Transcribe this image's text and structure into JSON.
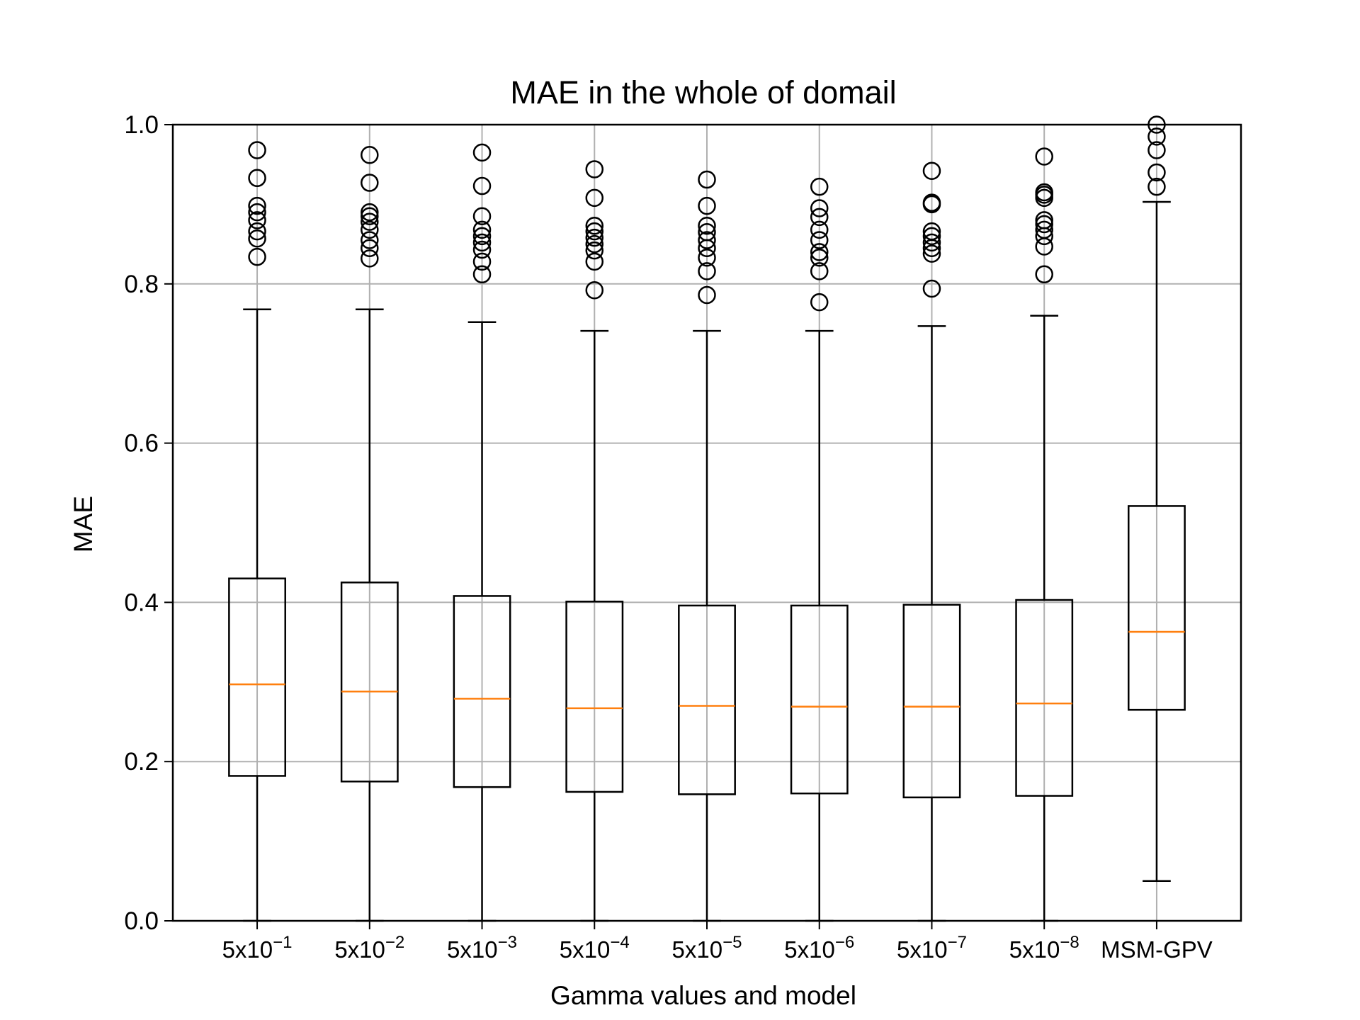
{
  "chart_data": {
    "type": "box",
    "title": "MAE in the whole of domail",
    "xlabel": "Gamma values and model",
    "ylabel": "MAE",
    "ylim": [
      0,
      1.0
    ],
    "yticks": [
      "0.0",
      "0.2",
      "0.4",
      "0.6",
      "0.8",
      "1.0"
    ],
    "grid": true,
    "colors": {
      "box": "#000000",
      "median": "#ff7f0e",
      "grid": "#b0b0b0"
    },
    "categories": [
      {
        "base": "5x10",
        "exp": "−1"
      },
      {
        "base": "5x10",
        "exp": "−2"
      },
      {
        "base": "5x10",
        "exp": "−3"
      },
      {
        "base": "5x10",
        "exp": "−4"
      },
      {
        "base": "5x10",
        "exp": "−5"
      },
      {
        "base": "5x10",
        "exp": "−6"
      },
      {
        "base": "5x10",
        "exp": "−7"
      },
      {
        "base": "5x10",
        "exp": "−8"
      },
      {
        "base": "MSM-GPV",
        "exp": ""
      }
    ],
    "boxes": [
      {
        "whislo": 0.0,
        "q1": 0.182,
        "med": 0.297,
        "q3": 0.43,
        "whishi": 0.768,
        "fliers": [
          0.834,
          0.857,
          0.866,
          0.88,
          0.89,
          0.898,
          0.933,
          0.968
        ]
      },
      {
        "whislo": 0.0,
        "q1": 0.175,
        "med": 0.288,
        "q3": 0.425,
        "whishi": 0.768,
        "fliers": [
          0.832,
          0.845,
          0.855,
          0.868,
          0.878,
          0.885,
          0.89,
          0.927,
          0.962
        ]
      },
      {
        "whislo": 0.0,
        "q1": 0.168,
        "med": 0.279,
        "q3": 0.408,
        "whishi": 0.752,
        "fliers": [
          0.812,
          0.828,
          0.843,
          0.852,
          0.86,
          0.868,
          0.885,
          0.923,
          0.965
        ]
      },
      {
        "whislo": 0.0,
        "q1": 0.162,
        "med": 0.267,
        "q3": 0.401,
        "whishi": 0.741,
        "fliers": [
          0.792,
          0.828,
          0.842,
          0.85,
          0.858,
          0.866,
          0.873,
          0.908,
          0.944
        ]
      },
      {
        "whislo": 0.0,
        "q1": 0.159,
        "med": 0.27,
        "q3": 0.396,
        "whishi": 0.741,
        "fliers": [
          0.786,
          0.816,
          0.833,
          0.845,
          0.855,
          0.865,
          0.873,
          0.898,
          0.931
        ]
      },
      {
        "whislo": 0.0,
        "q1": 0.16,
        "med": 0.269,
        "q3": 0.396,
        "whishi": 0.741,
        "fliers": [
          0.777,
          0.816,
          0.833,
          0.84,
          0.855,
          0.868,
          0.884,
          0.895,
          0.922
        ]
      },
      {
        "whislo": 0.0,
        "q1": 0.155,
        "med": 0.269,
        "q3": 0.397,
        "whishi": 0.747,
        "fliers": [
          0.794,
          0.838,
          0.845,
          0.852,
          0.86,
          0.866,
          0.9,
          0.902,
          0.942
        ]
      },
      {
        "whislo": 0.0,
        "q1": 0.157,
        "med": 0.273,
        "q3": 0.403,
        "whishi": 0.76,
        "fliers": [
          0.812,
          0.847,
          0.86,
          0.868,
          0.875,
          0.88,
          0.908,
          0.912,
          0.915,
          0.96
        ]
      },
      {
        "whislo": 0.05,
        "q1": 0.265,
        "med": 0.363,
        "q3": 0.521,
        "whishi": 0.903,
        "fliers": [
          0.922,
          0.94,
          0.968,
          0.985,
          1.0
        ]
      }
    ]
  }
}
